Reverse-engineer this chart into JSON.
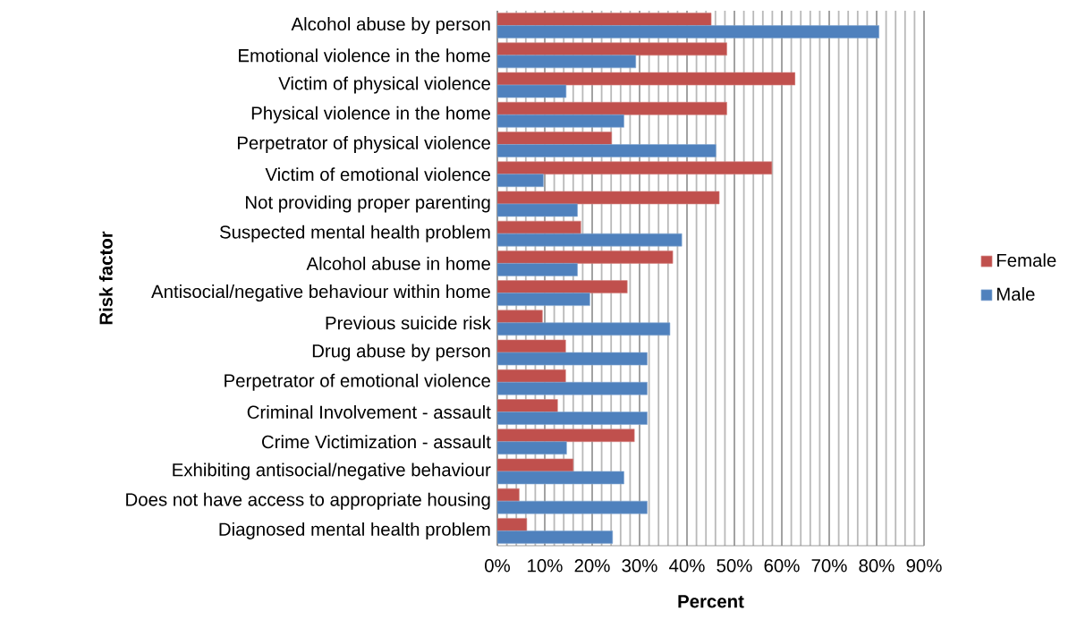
{
  "chart_data": {
    "type": "bar",
    "orientation": "horizontal",
    "xlabel": "Percent",
    "ylabel": "Risk factor",
    "categories": [
      "Alcohol abuse by person",
      "Emotional violence in the home",
      "Victim of physical violence",
      "Physical violence in the home",
      "Perpetrator of physical violence",
      "Victim of emotional violence",
      "Not providing proper parenting",
      "Suspected mental health problem",
      "Alcohol abuse in home",
      "Antisocial/negative behaviour within home",
      "Previous suicide risk",
      "Drug abuse by person",
      "Perpetrator of emotional violence",
      "Criminal Involvement - assault",
      "Crime Victimization  - assault",
      "Exhibiting antisocial/negative behaviour",
      "Does not have access to appropriate housing",
      "Diagnosed mental health problem"
    ],
    "series": [
      {
        "name": "Female",
        "color": "#c0504d",
        "values": [
          45.1,
          48.4,
          62.8,
          48.4,
          24.1,
          57.9,
          46.8,
          17.6,
          37.0,
          27.4,
          9.5,
          14.4,
          14.4,
          12.7,
          28.9,
          16.0,
          4.6,
          6.2
        ]
      },
      {
        "name": "Male",
        "color": "#4f81bd",
        "values": [
          80.5,
          29.2,
          14.5,
          26.7,
          46.1,
          9.7,
          16.9,
          38.9,
          16.9,
          19.5,
          36.4,
          31.6,
          31.6,
          31.6,
          14.6,
          26.7,
          31.6,
          24.3
        ]
      }
    ],
    "xlim": [
      0,
      90
    ],
    "xticks": [
      {
        "value": 0,
        "label": "0%"
      },
      {
        "value": 10,
        "label": "10%"
      },
      {
        "value": 20,
        "label": "20%"
      },
      {
        "value": 30,
        "label": "30%"
      },
      {
        "value": 40,
        "label": "40%"
      },
      {
        "value": 50,
        "label": "50%"
      },
      {
        "value": 60,
        "label": "60%"
      },
      {
        "value": 70,
        "label": "70%"
      },
      {
        "value": 80,
        "label": "80%"
      },
      {
        "value": 90,
        "label": "90%"
      }
    ],
    "grid": "x",
    "legend": "right"
  }
}
